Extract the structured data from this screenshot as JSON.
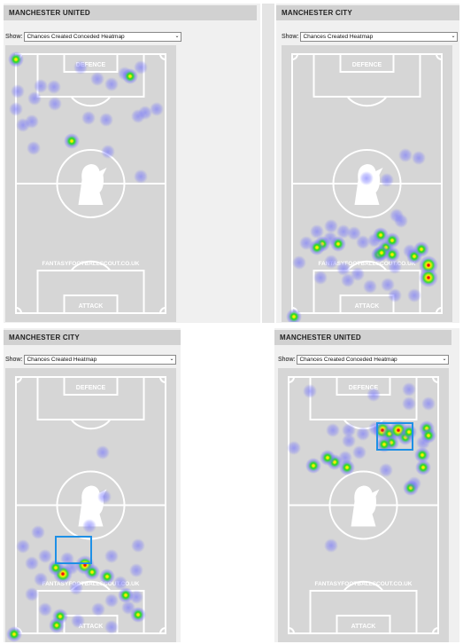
{
  "panels": [
    {
      "title": "MANCHESTER UNITED",
      "show_label": "Show:",
      "select_value": "Chances Created Conceded Heatmap",
      "defence_label": "DEFENCE",
      "attack_label": "ATTACK",
      "watermark": "FANTASYFOOTBALLSCOUT.CO.UK",
      "highlight_box": false
    },
    {
      "title": "MANCHESTER CITY",
      "show_label": "Show:",
      "select_value": "Chances Created Heatmap",
      "defence_label": "DEFENCE",
      "attack_label": "ATTACK",
      "watermark": "FANTASYFOOTBALLSCOUT.CO.UK",
      "highlight_box": false
    },
    {
      "title": "MANCHESTER CITY",
      "show_label": "Show:",
      "select_value": "Chances Created Heatmap",
      "defence_label": "DEFENCE",
      "attack_label": "ATTACK",
      "watermark": "FANTASYFOOTBALLSCOUT.CO.UK",
      "highlight_box": true
    },
    {
      "title": "MANCHESTER UNITED",
      "show_label": "Show:",
      "select_value": "Chances Created Conceded Heatmap",
      "defence_label": "DEFENCE",
      "attack_label": "ATTACK",
      "watermark": "FANTASYFOOTBALLSCOUT.CO.UK",
      "highlight_box": true
    }
  ],
  "colors": {
    "pitch": "#d6d6d6",
    "lines": "#ffffff",
    "title_bar": "#d1d1d1",
    "highlight": "#1e90e6",
    "heat_low": "#7070ff",
    "heat_mid": "#22dd22",
    "heat_high": "#ffee00",
    "heat_peak": "#ee1111"
  }
}
